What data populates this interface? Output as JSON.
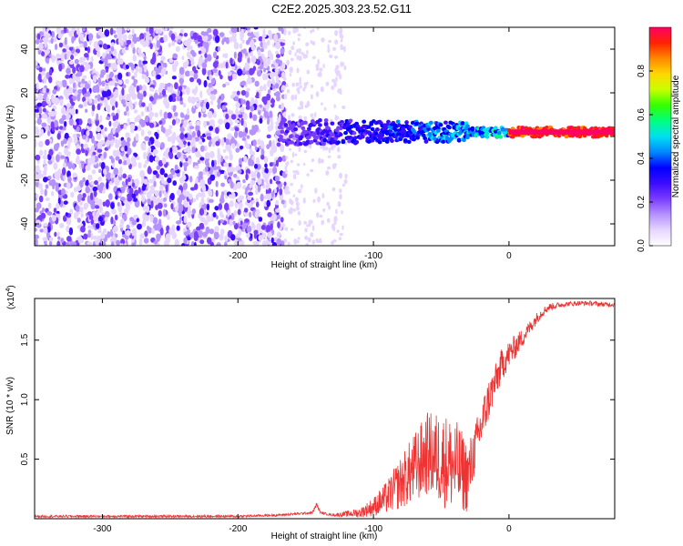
{
  "figure": {
    "title": "C2E2.2025.303.23.52.G11"
  },
  "colors": {
    "snr_line": "#ee3333",
    "axis": "#000000",
    "colormap": [
      "#ffffff",
      "#e6d6ff",
      "#b592ff",
      "#7a3cff",
      "#3a0cff",
      "#0000ff",
      "#0088ff",
      "#00e0f0",
      "#00ff80",
      "#33ff00",
      "#c8ff00",
      "#ffd800",
      "#ff8800",
      "#ff2200",
      "#ff0066"
    ]
  },
  "chart_data": [
    {
      "type": "heatmap",
      "title": "",
      "xlabel": "Height of straight line (km)",
      "ylabel": "Frequency (Hz)",
      "xlim": [
        -350,
        78
      ],
      "ylim": [
        -50,
        50
      ],
      "xticks": [
        -300,
        -200,
        -100,
        0
      ],
      "yticks": [
        -40,
        -20,
        0,
        20,
        40
      ],
      "colorbar": {
        "label": "Normalized spectral amplitude",
        "range": [
          0.0,
          1.0
        ],
        "ticks": [
          0.0,
          0.2,
          0.4,
          0.6,
          0.8
        ],
        "tick_labels": [
          "0.0",
          "0.2",
          "0.4",
          "0.6",
          "0.8"
        ]
      },
      "features": [
        {
          "region": "background noise",
          "x_range": [
            -350,
            -165
          ],
          "y_range": [
            -50,
            50
          ],
          "amplitude": 0.1
        },
        {
          "region": "fading noise",
          "x_range": [
            -165,
            -120
          ],
          "y_range": [
            -50,
            50
          ],
          "amplitude": 0.05
        },
        {
          "region": "signal band",
          "x_range": [
            -170,
            78
          ],
          "center_frequency": 2,
          "amplitude": 0.75
        },
        {
          "region": "peak",
          "x_range": [
            0,
            78
          ],
          "center_frequency": 2,
          "amplitude": 1.0
        }
      ]
    },
    {
      "type": "line",
      "title": "",
      "xlabel": "Height of straight line (km)",
      "ylabel": "SNR (10 * v/v)",
      "y_scale_label": "(x10",
      "y_scale_exp": "4",
      "y_scale": 10000,
      "xlim": [
        -350,
        78
      ],
      "ylim": [
        0,
        1.85
      ],
      "xticks": [
        -300,
        -200,
        -100,
        0
      ],
      "yticks": [
        0.5,
        1.0,
        1.5
      ],
      "ytick_labels": [
        "0.5",
        "1.0",
        "1.5"
      ],
      "series": [
        {
          "name": "SNR",
          "x": [
            -350,
            -300,
            -250,
            -200,
            -170,
            -145,
            -142,
            -139,
            -130,
            -110,
            -100,
            -90,
            -80,
            -70,
            -60,
            -50,
            -40,
            -30,
            -25,
            -20,
            -15,
            -10,
            -5,
            0,
            5,
            10,
            15,
            20,
            25,
            30,
            40,
            50,
            60,
            70,
            78
          ],
          "y": [
            0.02,
            0.02,
            0.02,
            0.02,
            0.03,
            0.05,
            0.12,
            0.05,
            0.03,
            0.05,
            0.1,
            0.18,
            0.3,
            0.42,
            0.55,
            0.5,
            0.45,
            0.35,
            0.6,
            0.8,
            1.0,
            1.15,
            1.3,
            1.38,
            1.45,
            1.52,
            1.6,
            1.68,
            1.74,
            1.78,
            1.8,
            1.81,
            1.81,
            1.8,
            1.8
          ],
          "noise_envelope": [
            0.01,
            0.01,
            0.01,
            0.01,
            0.01,
            0.01,
            0.02,
            0.01,
            0.01,
            0.04,
            0.08,
            0.14,
            0.22,
            0.3,
            0.35,
            0.4,
            0.4,
            0.3,
            0.2,
            0.2,
            0.18,
            0.15,
            0.14,
            0.12,
            0.1,
            0.08,
            0.06,
            0.05,
            0.04,
            0.03,
            0.02,
            0.02,
            0.02,
            0.02,
            0.02
          ]
        }
      ]
    }
  ]
}
